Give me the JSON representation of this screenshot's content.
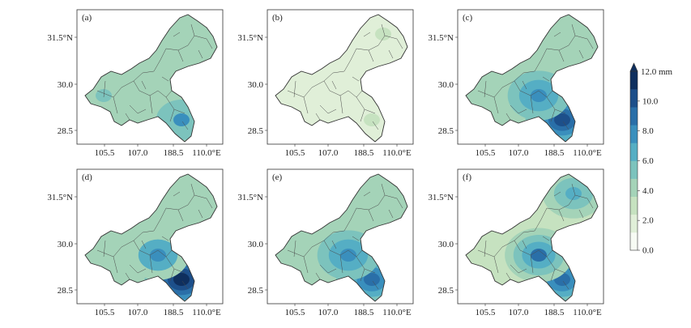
{
  "panels": [
    {
      "id": "a",
      "label": "(a)",
      "base_level": 4.5,
      "hotspots": [
        {
          "region": "southeast",
          "level": 7.2
        },
        {
          "region": "west",
          "level": 5.8
        },
        {
          "region": "northeast",
          "level": 4.0
        }
      ]
    },
    {
      "id": "b",
      "label": "(b)",
      "base_level": 2.2,
      "hotspots": [
        {
          "region": "northeast",
          "level": 3.2
        },
        {
          "region": "southeast",
          "level": 2.8
        }
      ]
    },
    {
      "id": "c",
      "label": "(c)",
      "base_level": 3.8,
      "hotspots": [
        {
          "region": "southeast",
          "level": 10.5
        },
        {
          "region": "central",
          "level": 7.5
        },
        {
          "region": "northeast",
          "level": 4.2
        }
      ]
    },
    {
      "id": "d",
      "label": "(d)",
      "base_level": 3.6,
      "hotspots": [
        {
          "region": "southeast",
          "level": 11.2
        },
        {
          "region": "central",
          "level": 7.2
        },
        {
          "region": "northeast",
          "level": 3.8
        }
      ]
    },
    {
      "id": "e",
      "label": "(e)",
      "base_level": 3.8,
      "hotspots": [
        {
          "region": "southeast",
          "level": 9.2
        },
        {
          "region": "central",
          "level": 7.4
        },
        {
          "region": "northeast",
          "level": 4.4
        }
      ]
    },
    {
      "id": "f",
      "label": "(f)",
      "base_level": 3.2,
      "hotspots": [
        {
          "region": "southeast",
          "level": 9.0
        },
        {
          "region": "central",
          "level": 8.4
        },
        {
          "region": "northeast",
          "level": 7.0
        }
      ]
    }
  ],
  "axes": {
    "x_ticks": [
      "105.5",
      "107.0",
      "188.5",
      "110.0°E"
    ],
    "y_ticks_left": [
      "31.5°N",
      "30.0",
      "28.5"
    ],
    "y_ticks_inner": [
      "31.5°N",
      "30.0",
      "28.5"
    ]
  },
  "colorbar": {
    "unit_label": "12.0 mm",
    "ticks": [
      "10.0",
      "8.0",
      "6.0",
      "4.0",
      "2.0",
      "0.0"
    ],
    "colors": [
      "#f7fbf4",
      "#e0efd8",
      "#c6e2c0",
      "#a4d3b8",
      "#7cc3bd",
      "#55aec4",
      "#3a8fbd",
      "#2a6fa8",
      "#1d4f8a",
      "#0f2f5e"
    ],
    "min": 0,
    "max": 12
  }
}
